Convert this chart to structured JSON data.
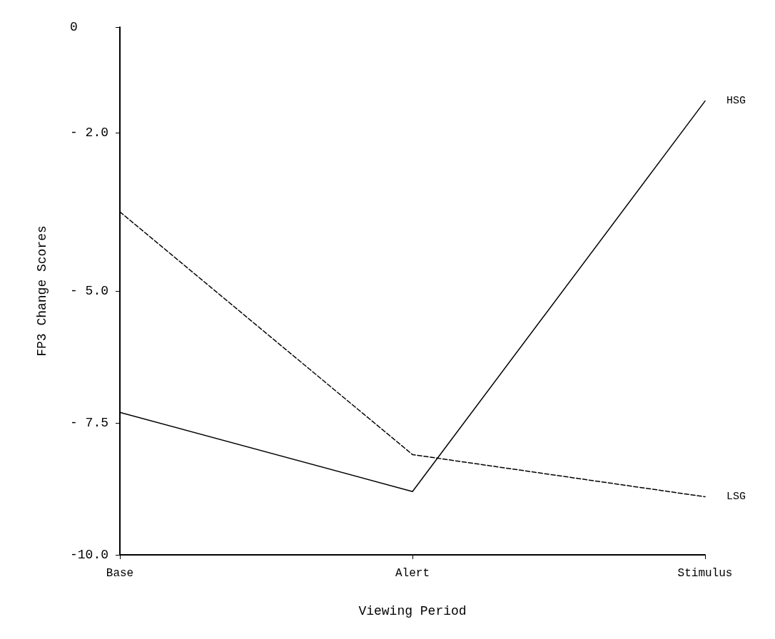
{
  "chart_data": {
    "type": "line",
    "xlabel": "Viewing Period",
    "ylabel": "FP3 Change Scores",
    "categories": [
      "Base",
      "Alert",
      "Stimulus"
    ],
    "series": [
      {
        "name": "HSG",
        "color": "#000000",
        "line_style": "solid",
        "values": [
          -7.3,
          -8.8,
          -1.4
        ]
      },
      {
        "name": "LSG",
        "color": "#000000",
        "line_style": "dashed",
        "values": [
          -3.5,
          -8.1,
          -8.9
        ]
      }
    ],
    "ylim": [
      -10,
      0
    ],
    "yticks": [
      {
        "value": 0,
        "label": "0"
      },
      {
        "value": -2,
        "label": "- 2.0"
      },
      {
        "value": -5,
        "label": "- 5.0"
      },
      {
        "value": -7.5,
        "label": "- 7.5"
      },
      {
        "value": -10,
        "label": "-10.0"
      }
    ],
    "grid": false,
    "legend": false,
    "marker": "none"
  }
}
